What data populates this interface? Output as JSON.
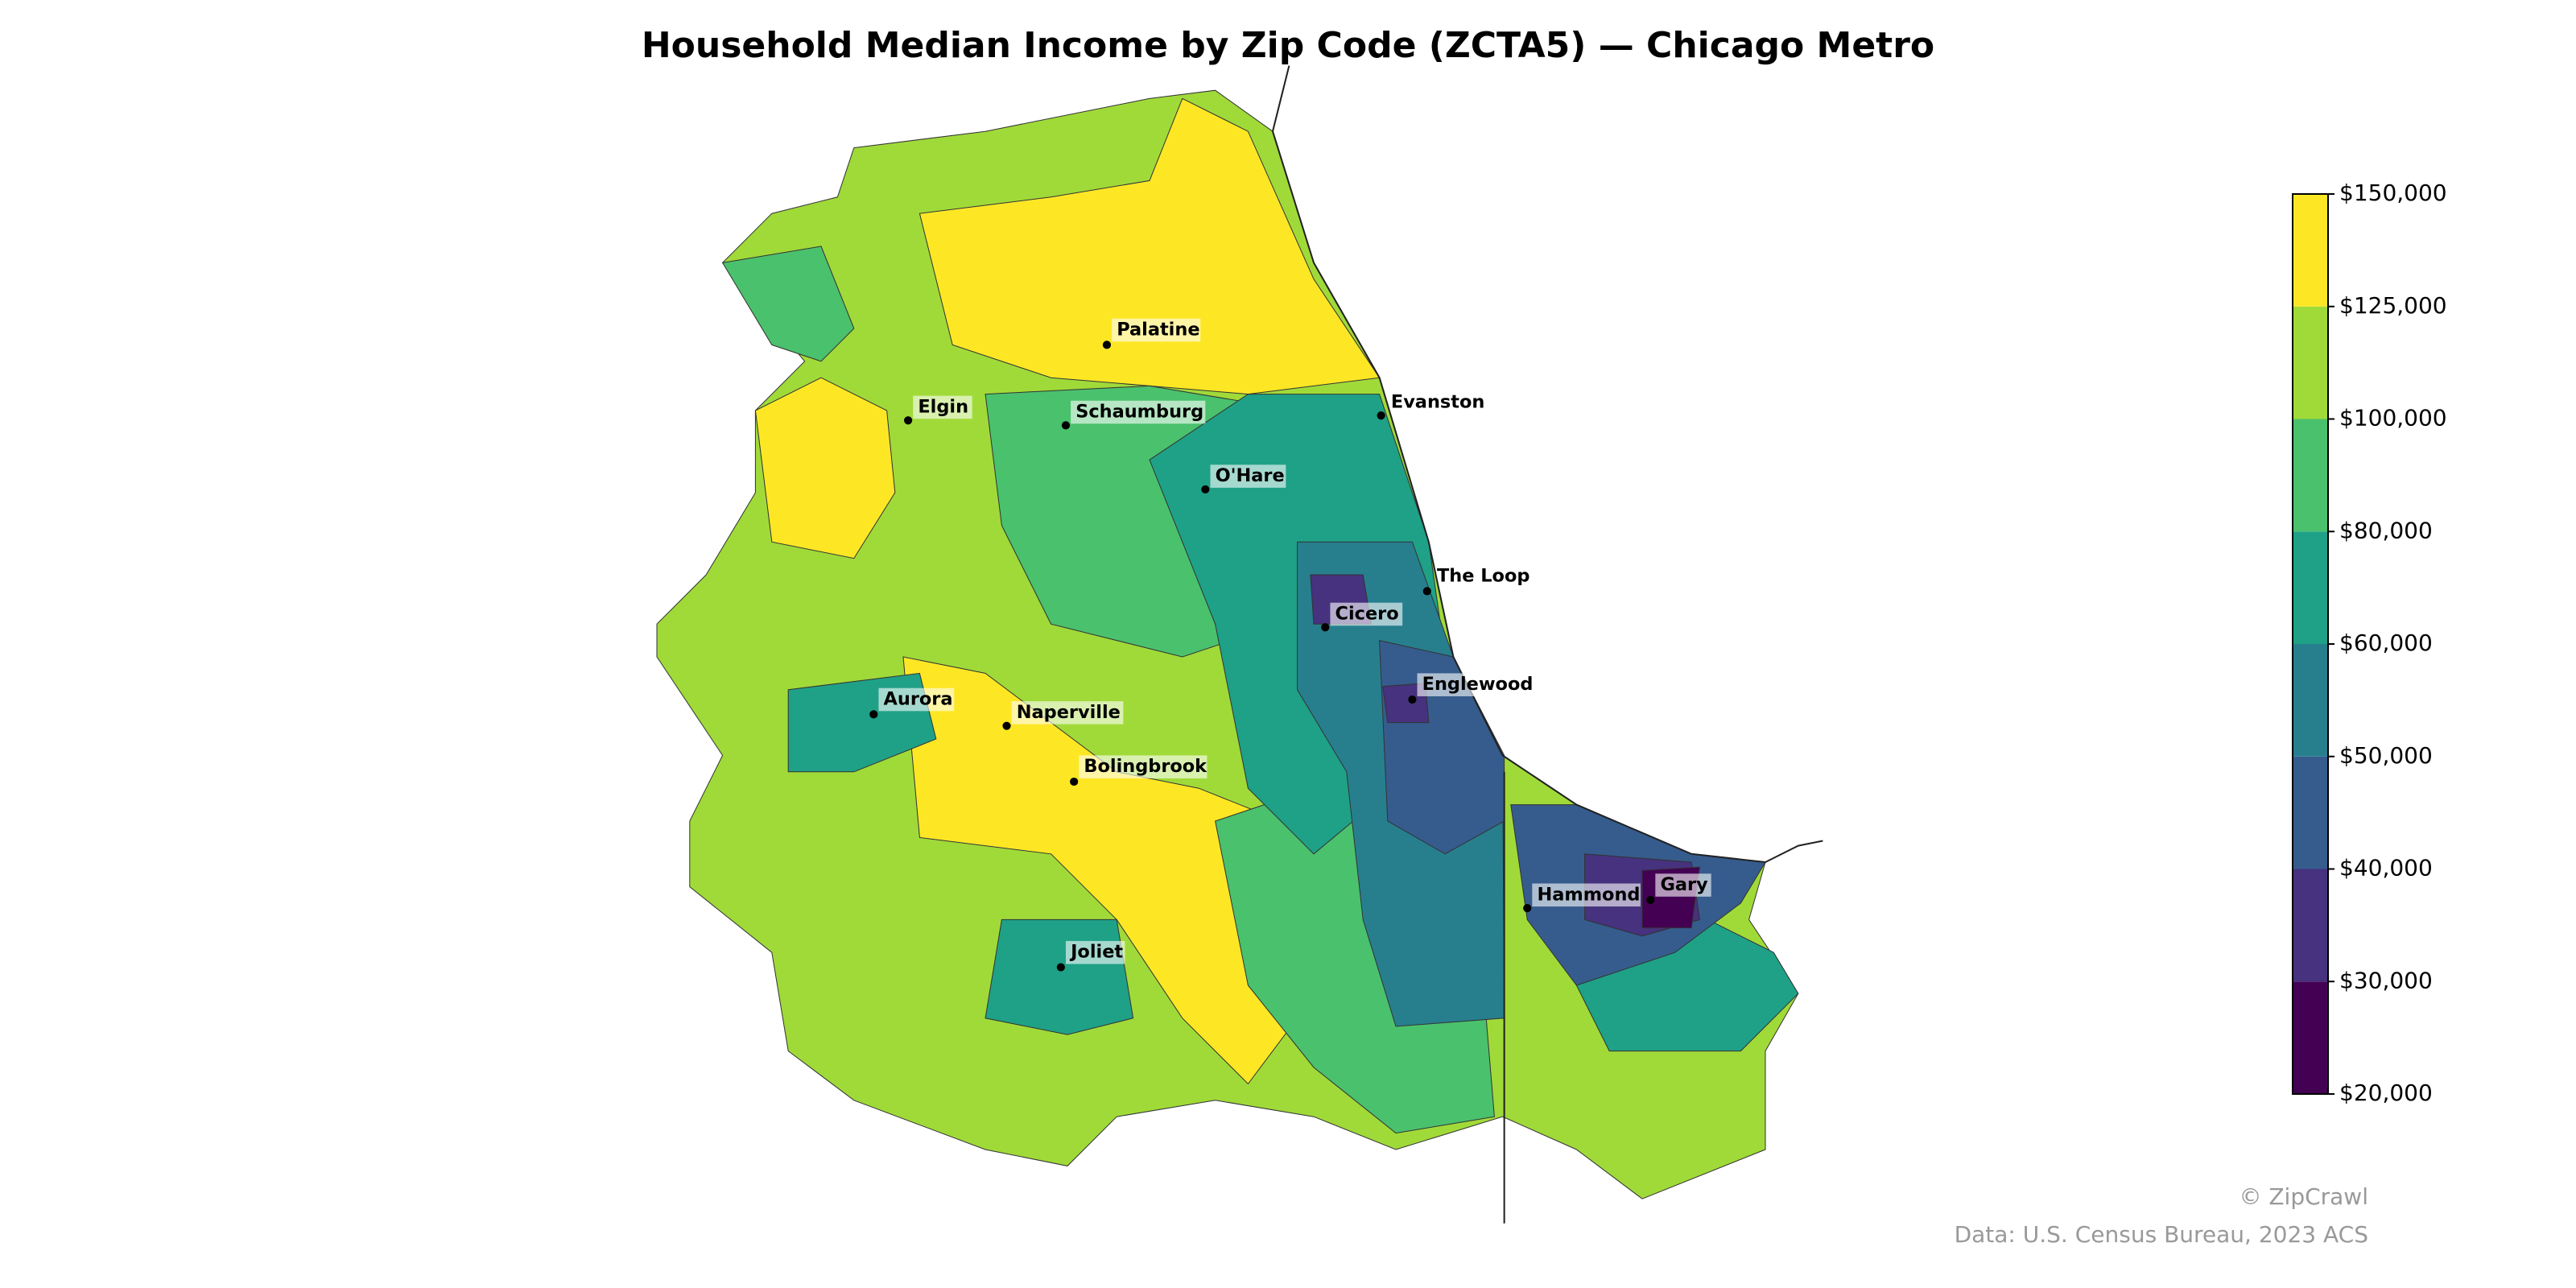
{
  "header": {
    "title": "Household Median Income by Zip Code (ZCTA5) — Chicago Metro"
  },
  "places": [
    {
      "name": "Palatine"
    },
    {
      "name": "Elgin"
    },
    {
      "name": "Schaumburg"
    },
    {
      "name": "Evanston"
    },
    {
      "name": "O'Hare"
    },
    {
      "name": "The Loop"
    },
    {
      "name": "Cicero"
    },
    {
      "name": "Englewood"
    },
    {
      "name": "Aurora"
    },
    {
      "name": "Naperville"
    },
    {
      "name": "Bolingbrook"
    },
    {
      "name": "Hammond"
    },
    {
      "name": "Gary"
    },
    {
      "name": "Joliet"
    }
  ],
  "colorbar": {
    "ticks": [
      {
        "value": 20000,
        "label": "$20,000"
      },
      {
        "value": 30000,
        "label": "$30,000"
      },
      {
        "value": 40000,
        "label": "$40,000"
      },
      {
        "value": 50000,
        "label": "$50,000"
      },
      {
        "value": 60000,
        "label": "$60,000"
      },
      {
        "value": 80000,
        "label": "$80,000"
      },
      {
        "value": 100000,
        "label": "$100,000"
      },
      {
        "value": 125000,
        "label": "$125,000"
      },
      {
        "value": 150000,
        "label": "$150,000"
      }
    ],
    "colors": [
      "#440154",
      "#46327e",
      "#365c8d",
      "#277f8e",
      "#1fa187",
      "#4ac16d",
      "#a0da39",
      "#fde725"
    ]
  },
  "footer": {
    "credit": "© ZipCrawl",
    "source": "Data: U.S. Census Bureau, 2023 ACS"
  }
}
